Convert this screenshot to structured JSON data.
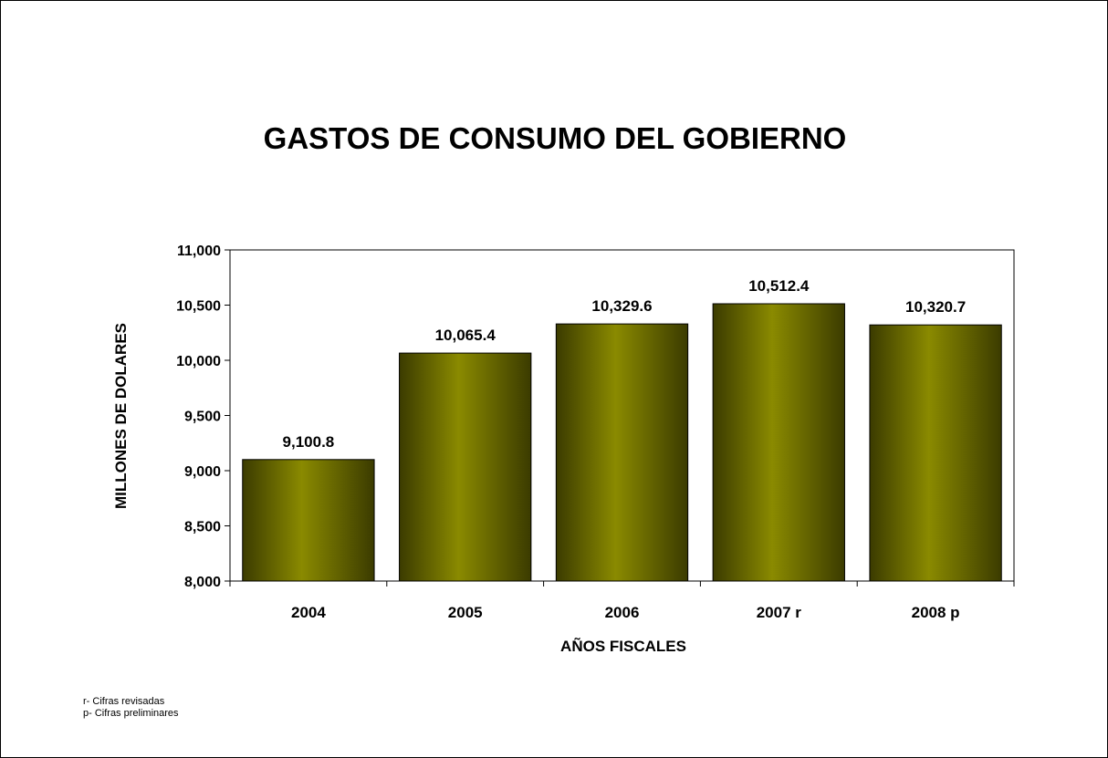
{
  "chart_data": {
    "type": "bar",
    "title": "GASTOS DE CONSUMO DEL GOBIERNO",
    "xlabel": "AÑOS FISCALES",
    "ylabel": "MILLONES DE DOLARES",
    "categories": [
      "2004",
      "2005",
      "2006",
      "2007 r",
      "2008 p"
    ],
    "values": [
      9100.8,
      10065.4,
      10329.6,
      10512.4,
      10320.7
    ],
    "data_labels": [
      "9,100.8",
      "10,065.4",
      "10,329.6",
      "10,512.4",
      "10,320.7"
    ],
    "ylim": [
      8000,
      11000
    ],
    "yticks": [
      8000,
      8500,
      9000,
      9500,
      10000,
      10500,
      11000
    ],
    "ytick_labels": [
      "8,000",
      "8,500",
      "9,000",
      "9,500",
      "10,000",
      "10,500",
      "11,000"
    ],
    "grid": false,
    "legend": "none",
    "colors": {
      "bar_dark": "#3b3b00",
      "bar_light": "#8a8a00",
      "axis": "#000000"
    }
  },
  "footnotes": [
    "r- Cifras revisadas",
    "p- Cifras preliminares"
  ]
}
